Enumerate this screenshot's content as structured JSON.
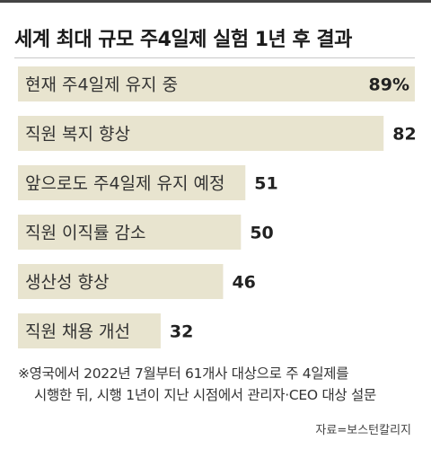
{
  "chart_data": {
    "type": "bar",
    "orientation": "horizontal",
    "title": "세계 최대 규모 주4일제 실험 1년 후 결과",
    "categories": [
      "현재 주4일제 유지 중",
      "직원 복지 향상",
      "앞으로도 주4일제 유지 예정",
      "직원 이직률 감소",
      "생산성 향상",
      "직원 채용 개선"
    ],
    "values": [
      89,
      82,
      51,
      50,
      46,
      32
    ],
    "value_labels": [
      "89%",
      "82",
      "51",
      "50",
      "46",
      "32"
    ],
    "xlim": [
      0,
      89
    ],
    "grid": false,
    "bar_color": "#e8e4cf"
  },
  "note": {
    "line1": "※영국에서 2022년 7월부터 61개사 대상으로 주 4일제를",
    "line2": "시행한 뒤, 시행 1년이 지난 시점에서 관리자·CEO 대상 설문"
  },
  "source": "자료=보스턴칼리지"
}
